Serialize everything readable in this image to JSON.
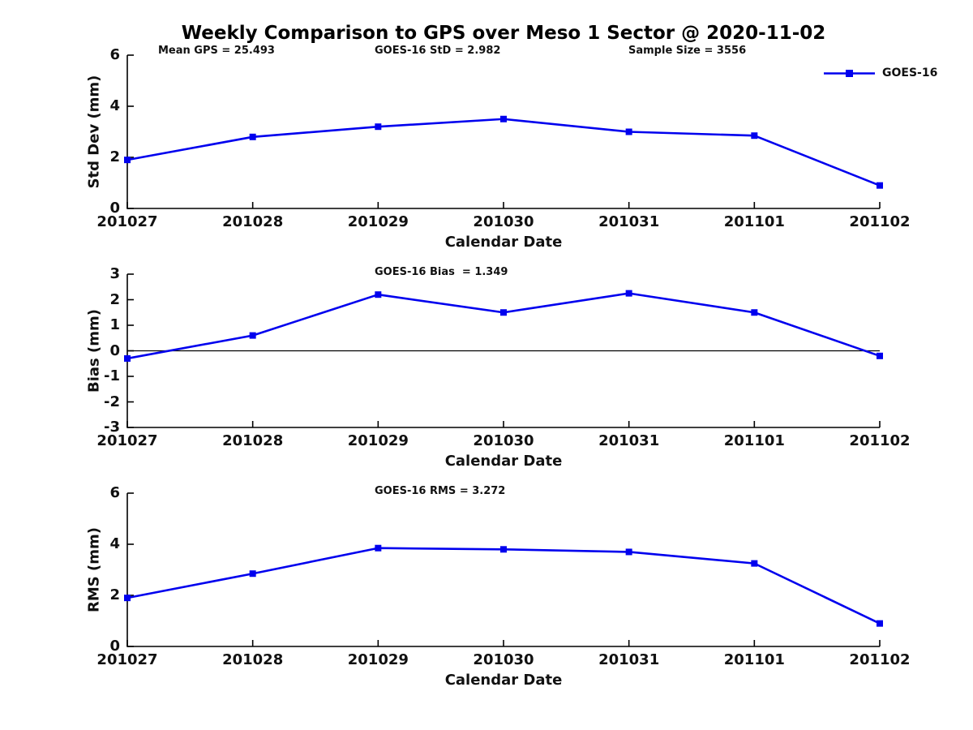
{
  "title": "Weekly Comparison to GPS over Meso 1 Sector @ 2020-11-02",
  "legend": {
    "label": "GOES-16",
    "marker": "square"
  },
  "colors": {
    "line": "#0000EE",
    "text": "#111111",
    "axis": "#000000"
  },
  "chart_data": [
    {
      "type": "line",
      "panel": "std-dev",
      "x": [
        "201027",
        "201028",
        "201029",
        "201030",
        "201031",
        "201101",
        "201102"
      ],
      "series": [
        {
          "name": "GOES-16",
          "values": [
            1.9,
            2.8,
            3.2,
            3.5,
            3.0,
            2.85,
            0.9
          ]
        }
      ],
      "xlabel": "Calendar Date",
      "ylabel": "Std Dev (mm)",
      "ylim": [
        0,
        6
      ],
      "yticks": [
        0,
        2,
        4,
        6
      ],
      "grid": false,
      "annotations": [
        "Mean GPS = 25.493",
        "GOES-16 StD = 2.982",
        "Sample Size = 3556"
      ],
      "legend_entry": "GOES-16",
      "legend_position": "upper right outside"
    },
    {
      "type": "line",
      "panel": "bias",
      "x": [
        "201027",
        "201028",
        "201029",
        "201030",
        "201031",
        "201101",
        "201102"
      ],
      "series": [
        {
          "name": "GOES-16",
          "values": [
            -0.3,
            0.6,
            2.2,
            1.5,
            2.25,
            1.5,
            -0.2
          ]
        }
      ],
      "xlabel": "Calendar Date",
      "ylabel": "Bias (mm)",
      "ylim": [
        -3,
        3
      ],
      "yticks": [
        -3,
        -2,
        -1,
        0,
        1,
        2,
        3
      ],
      "grid": false,
      "zero_line": true,
      "annotations": [
        "GOES-16 Bias  = 1.349"
      ]
    },
    {
      "type": "line",
      "panel": "rms",
      "x": [
        "201027",
        "201028",
        "201029",
        "201030",
        "201031",
        "201101",
        "201102"
      ],
      "series": [
        {
          "name": "GOES-16",
          "values": [
            1.9,
            2.85,
            3.85,
            3.8,
            3.7,
            3.25,
            0.9
          ]
        }
      ],
      "xlabel": "Calendar Date",
      "ylabel": "RMS (mm)",
      "ylim": [
        0,
        6
      ],
      "yticks": [
        0,
        2,
        4,
        6
      ],
      "grid": false,
      "annotations": [
        "GOES-16 RMS = 3.272"
      ]
    }
  ]
}
